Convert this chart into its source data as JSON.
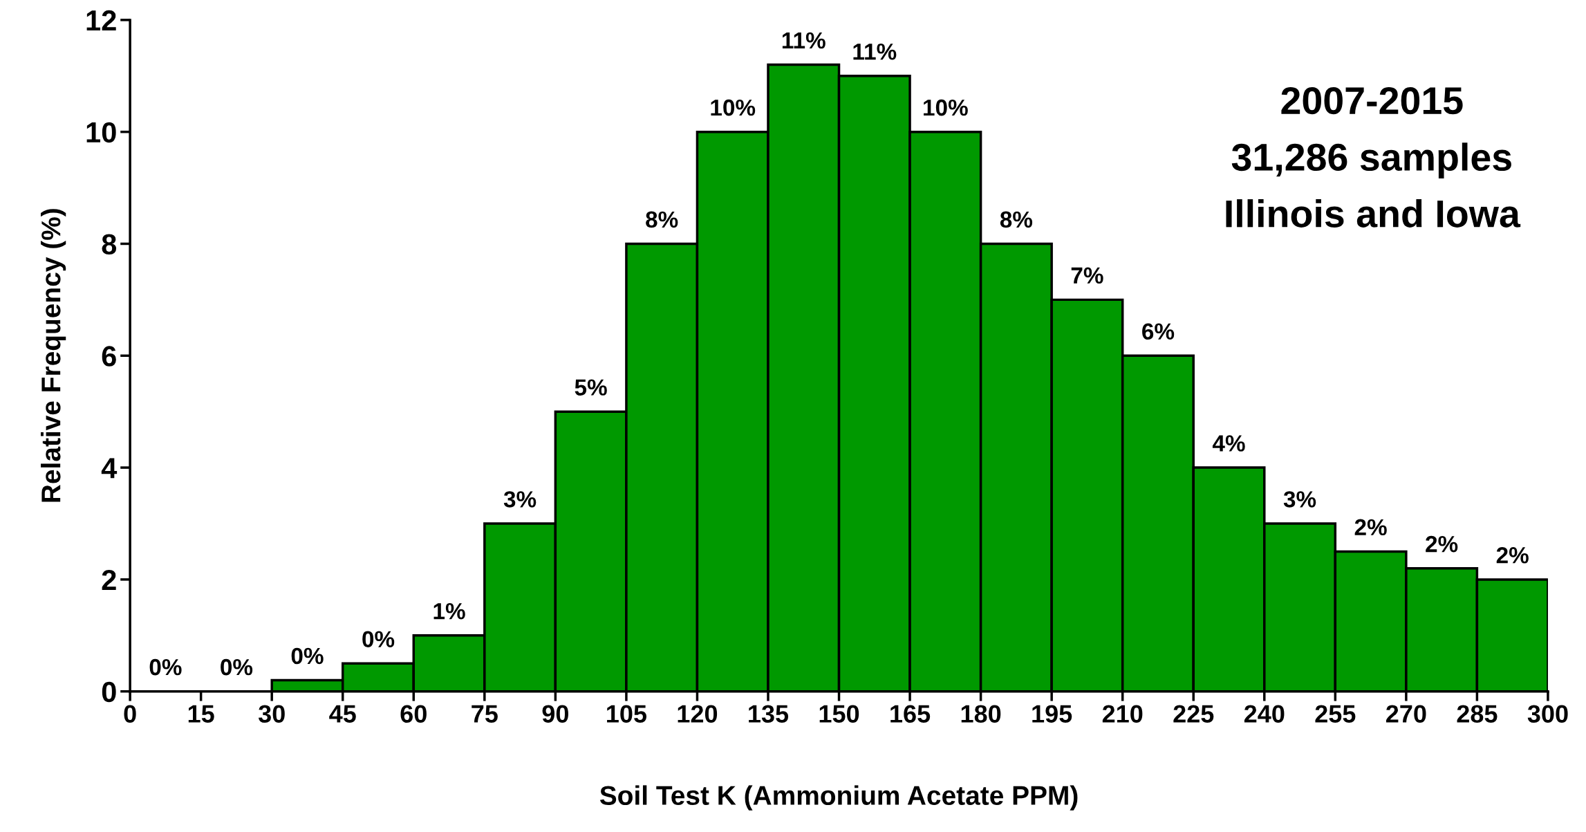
{
  "chart_data": {
    "type": "histogram",
    "xlabel": "Soil Test K (Ammonium Acetate PPM)",
    "ylabel": "Relative Frequency (%)",
    "bins": [
      0,
      15,
      30,
      45,
      60,
      75,
      90,
      105,
      120,
      135,
      150,
      165,
      180,
      195,
      210,
      225,
      240,
      255,
      270,
      285,
      300
    ],
    "values": [
      0,
      0,
      0.2,
      0.5,
      1,
      3,
      5,
      8,
      10,
      11.2,
      11,
      10,
      8,
      7,
      6,
      4,
      3,
      2.5,
      2.2,
      2
    ],
    "value_labels": [
      "0%",
      "0%",
      "0%",
      "0%",
      "1%",
      "3%",
      "5%",
      "8%",
      "10%",
      "11%",
      "11%",
      "10%",
      "8%",
      "7%",
      "6%",
      "4%",
      "3%",
      "2%",
      "2%",
      "2%"
    ],
    "color": "#009900",
    "xlim": [
      0,
      300
    ],
    "xticks": [
      0,
      15,
      30,
      45,
      60,
      75,
      90,
      105,
      120,
      135,
      150,
      165,
      180,
      195,
      210,
      225,
      240,
      255,
      270,
      285,
      300
    ],
    "ylim": [
      0,
      12
    ],
    "yticks": [
      0,
      2,
      4,
      6,
      8,
      10,
      12
    ],
    "grid": false,
    "annotations": [
      "2007-2015",
      "31,286 samples",
      "Illinois and Iowa"
    ]
  }
}
